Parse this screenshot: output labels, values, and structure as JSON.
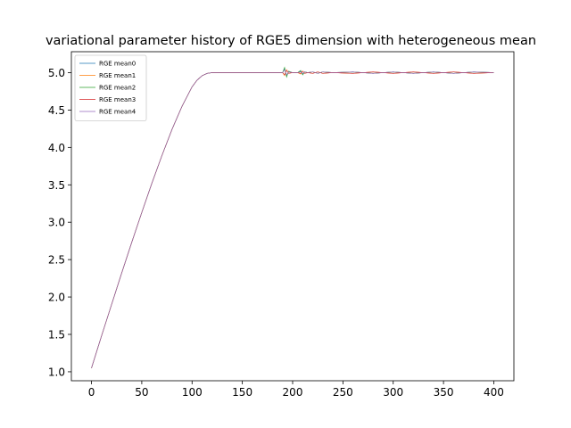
{
  "chart_data": {
    "type": "line",
    "title": "variational parameter history of RGE5 dimension with heterogeneous mean",
    "xlabel": "",
    "ylabel": "",
    "xlim": [
      -20,
      420
    ],
    "ylim": [
      0.88,
      5.28
    ],
    "xticks": [
      0,
      50,
      100,
      150,
      200,
      250,
      300,
      350,
      400
    ],
    "xtick_labels": [
      "0",
      "50",
      "100",
      "150",
      "200",
      "250",
      "300",
      "350",
      "400"
    ],
    "yticks": [
      1.0,
      1.5,
      2.0,
      2.5,
      3.0,
      3.5,
      4.0,
      4.5,
      5.0
    ],
    "ytick_labels": [
      "1.0",
      "1.5",
      "2.0",
      "2.5",
      "3.0",
      "3.5",
      "4.0",
      "4.5",
      "5.0"
    ],
    "grid": false,
    "legend_position": "top-left",
    "x": [
      0,
      10,
      20,
      30,
      40,
      50,
      60,
      70,
      80,
      90,
      100,
      105,
      110,
      115,
      120,
      130,
      150,
      175,
      190,
      192,
      194,
      196,
      200,
      205,
      208,
      210,
      212,
      215,
      220,
      225,
      230,
      240,
      260,
      280,
      300,
      320,
      340,
      360,
      380,
      400
    ],
    "series": [
      {
        "name": "RGE mean0",
        "color": "#1f77b4",
        "values": [
          1.05,
          1.48,
          1.9,
          2.32,
          2.73,
          3.13,
          3.52,
          3.89,
          4.24,
          4.55,
          4.81,
          4.9,
          4.96,
          4.99,
          5.0,
          5.0,
          5.0,
          5.0,
          5.0,
          5.05,
          4.96,
          5.01,
          5.0,
          5.0,
          5.02,
          4.98,
          5.01,
          5.0,
          5.01,
          4.99,
          5.01,
          5.0,
          5.01,
          4.99,
          5.01,
          4.99,
          5.01,
          4.99,
          5.01,
          5.0
        ]
      },
      {
        "name": "RGE mean1",
        "color": "#ff7f0e",
        "values": [
          1.05,
          1.48,
          1.9,
          2.32,
          2.73,
          3.13,
          3.52,
          3.89,
          4.24,
          4.55,
          4.81,
          4.9,
          4.96,
          4.99,
          5.0,
          5.0,
          5.0,
          5.0,
          5.0,
          4.96,
          5.04,
          4.99,
          5.0,
          5.0,
          4.98,
          5.02,
          4.99,
          5.0,
          4.99,
          5.01,
          4.99,
          5.0,
          4.99,
          5.01,
          4.99,
          5.01,
          4.99,
          5.01,
          4.99,
          5.0
        ]
      },
      {
        "name": "RGE mean2",
        "color": "#2ca02c",
        "values": [
          1.05,
          1.48,
          1.9,
          2.32,
          2.73,
          3.13,
          3.52,
          3.89,
          4.24,
          4.55,
          4.81,
          4.9,
          4.96,
          4.99,
          5.0,
          5.0,
          5.0,
          5.0,
          5.0,
          5.07,
          4.94,
          5.02,
          5.0,
          5.0,
          5.03,
          4.97,
          5.01,
          5.0,
          5.01,
          4.99,
          5.01,
          5.0,
          5.01,
          4.99,
          5.01,
          4.99,
          5.01,
          4.99,
          5.01,
          5.0
        ]
      },
      {
        "name": "RGE mean3",
        "color": "#d62728",
        "values": [
          1.05,
          1.48,
          1.9,
          2.32,
          2.73,
          3.13,
          3.52,
          3.89,
          4.24,
          4.55,
          4.81,
          4.9,
          4.96,
          4.99,
          5.0,
          5.0,
          5.0,
          5.0,
          5.0,
          4.97,
          5.03,
          4.99,
          5.0,
          5.0,
          4.99,
          5.02,
          4.99,
          5.0,
          4.99,
          5.01,
          4.99,
          5.0,
          4.99,
          5.01,
          4.99,
          5.01,
          4.99,
          5.01,
          4.99,
          5.0
        ]
      },
      {
        "name": "RGE mean4",
        "color": "#9467bd",
        "values": [
          1.05,
          1.48,
          1.9,
          2.32,
          2.73,
          3.13,
          3.52,
          3.89,
          4.24,
          4.55,
          4.81,
          4.9,
          4.96,
          4.99,
          5.0,
          5.0,
          5.0,
          5.0,
          5.0,
          5.04,
          4.97,
          5.01,
          5.0,
          5.0,
          5.01,
          4.99,
          5.01,
          5.0,
          5.01,
          4.99,
          5.01,
          5.0,
          5.01,
          4.99,
          5.01,
          4.99,
          5.01,
          4.99,
          5.01,
          5.0
        ]
      }
    ]
  }
}
